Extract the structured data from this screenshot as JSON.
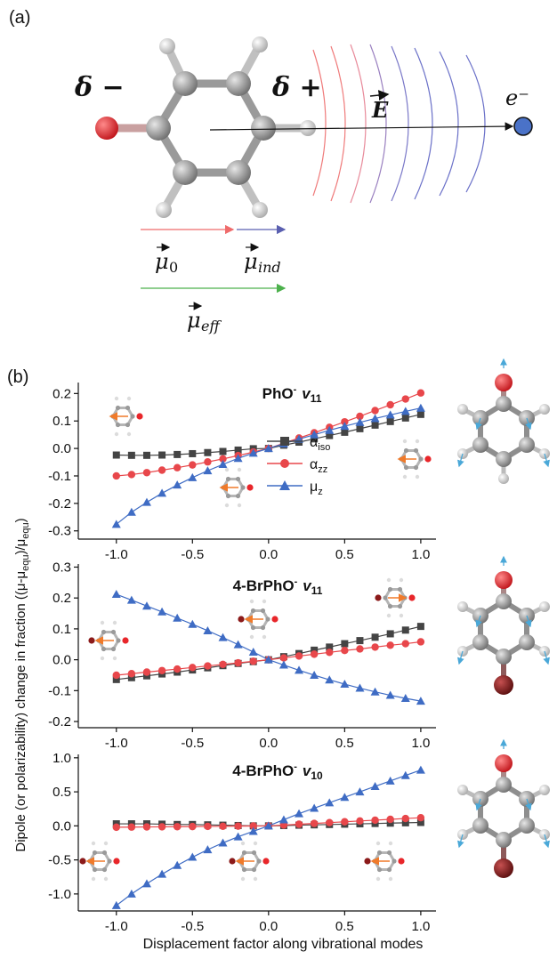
{
  "panel_a": {
    "label": "(a)",
    "delta_minus": "δ −",
    "delta_plus": "δ +",
    "field_label": "E",
    "electron_label": "e⁻",
    "mu0_label": "μ",
    "mu0_sub": "0",
    "muind_label": "μ",
    "muind_sub": "ind",
    "mueff_label": "μ",
    "mueff_sub": "eff",
    "colors": {
      "oxygen": "#e8262a",
      "carbon": "#8e8e8e",
      "hydrogen": "#d8d8d8",
      "electron": "#4a72c8",
      "mu0": "#ef6b6b",
      "muind": "#5a5fb0",
      "mueff": "#4cb14c"
    }
  },
  "panel_b": {
    "label": "(b)",
    "ylabel": "Dipole (or polarizability) change in fraction ((μ-μ",
    "ylabel_sub1": "equ",
    "ylabel_mid": ")/μ",
    "ylabel_sub2": "equ",
    "ylabel_end": ")",
    "xlabel": "Displacement factor along vibrational modes",
    "legend": [
      {
        "base": "α",
        "sub": "iso"
      },
      {
        "base": "α",
        "sub": "zz"
      },
      {
        "base": "μ",
        "sub": "z"
      }
    ],
    "colors": {
      "alpha_iso": "#444444",
      "alpha_zz": "#e8474b",
      "mu_z": "#3f6cc4",
      "arrow": "#f07a2a",
      "bromine": "#8b1a1a",
      "mode_arrow": "#4aa8d8"
    }
  },
  "chart_data": [
    {
      "type": "line",
      "title": "PhO⁻ ν11",
      "title_main": "PhO",
      "title_sup": "-",
      "title_nu": "v",
      "title_sub": "11",
      "xlim": [
        -1.25,
        1.1
      ],
      "ylim": [
        -0.33,
        0.24
      ],
      "xticks": [
        -1.0,
        -0.5,
        0.0,
        0.5,
        1.0
      ],
      "xtick_labels": [
        "-1.0",
        "-0.5",
        "0.0",
        "0.5",
        "1.0"
      ],
      "yticks": [
        0.2,
        0.1,
        0.0,
        -0.1,
        -0.2,
        -0.3
      ],
      "ytick_labels": [
        "0.2",
        "0.1",
        "0.0",
        "-0.1",
        "-0.2",
        "-0.3"
      ],
      "series": [
        {
          "name": "α_iso",
          "marker": "square",
          "x": [
            -1.0,
            -0.9,
            -0.8,
            -0.7,
            -0.6,
            -0.5,
            -0.4,
            -0.3,
            -0.2,
            -0.1,
            0.0,
            0.1,
            0.2,
            0.3,
            0.4,
            0.5,
            0.6,
            0.7,
            0.8,
            0.9,
            1.0
          ],
          "y": [
            -0.024,
            -0.025,
            -0.025,
            -0.024,
            -0.022,
            -0.019,
            -0.015,
            -0.011,
            -0.006,
            -0.001,
            0.0,
            0.012,
            0.023,
            0.035,
            0.047,
            0.059,
            0.072,
            0.085,
            0.098,
            0.111,
            0.124
          ]
        },
        {
          "name": "α_zz",
          "marker": "circle",
          "x": [
            -1.0,
            -0.9,
            -0.8,
            -0.7,
            -0.6,
            -0.5,
            -0.4,
            -0.3,
            -0.2,
            -0.1,
            0.0,
            0.1,
            0.2,
            0.3,
            0.4,
            0.5,
            0.6,
            0.7,
            0.8,
            0.9,
            1.0
          ],
          "y": [
            -0.1,
            -0.095,
            -0.088,
            -0.079,
            -0.07,
            -0.06,
            -0.049,
            -0.038,
            -0.026,
            -0.013,
            0.0,
            0.019,
            0.038,
            0.057,
            0.077,
            0.097,
            0.117,
            0.138,
            0.159,
            0.18,
            0.202
          ]
        },
        {
          "name": "μ_z",
          "marker": "triangle",
          "x": [
            -1.0,
            -0.9,
            -0.8,
            -0.7,
            -0.6,
            -0.5,
            -0.4,
            -0.3,
            -0.2,
            -0.1,
            0.0,
            0.1,
            0.2,
            0.3,
            0.4,
            0.5,
            0.6,
            0.7,
            0.8,
            0.9,
            1.0
          ],
          "y": [
            -0.276,
            -0.232,
            -0.196,
            -0.163,
            -0.133,
            -0.106,
            -0.081,
            -0.058,
            -0.036,
            -0.017,
            0.0,
            0.017,
            0.034,
            0.05,
            0.066,
            0.081,
            0.095,
            0.109,
            0.122,
            0.135,
            0.147
          ]
        }
      ]
    },
    {
      "type": "line",
      "title": "4-BrPhO⁻ ν11",
      "title_main": "4-BrPhO",
      "title_sup": "-",
      "title_nu": "v",
      "title_sub": "11",
      "xlim": [
        -1.25,
        1.1
      ],
      "ylim": [
        -0.22,
        0.31
      ],
      "xticks": [
        -1.0,
        -0.5,
        0.0,
        0.5,
        1.0
      ],
      "xtick_labels": [
        "-1.0",
        "-0.5",
        "0.0",
        "0.5",
        "1.0"
      ],
      "yticks": [
        0.3,
        0.2,
        0.1,
        0.0,
        -0.1,
        -0.2
      ],
      "ytick_labels": [
        "0.3",
        "0.2",
        "0.1",
        "0.0",
        "-0.1",
        "-0.2"
      ],
      "series": [
        {
          "name": "α_iso",
          "marker": "square",
          "x": [
            -1.0,
            -0.9,
            -0.8,
            -0.7,
            -0.6,
            -0.5,
            -0.4,
            -0.3,
            -0.2,
            -0.1,
            0.0,
            0.1,
            0.2,
            0.3,
            0.4,
            0.5,
            0.6,
            0.7,
            0.8,
            0.9,
            1.0
          ],
          "y": [
            -0.064,
            -0.058,
            -0.052,
            -0.046,
            -0.04,
            -0.033,
            -0.026,
            -0.019,
            -0.012,
            -0.006,
            0.0,
            0.01,
            0.02,
            0.031,
            0.041,
            0.052,
            0.062,
            0.073,
            0.084,
            0.096,
            0.108
          ]
        },
        {
          "name": "α_zz",
          "marker": "circle",
          "x": [
            -1.0,
            -0.9,
            -0.8,
            -0.7,
            -0.6,
            -0.5,
            -0.4,
            -0.3,
            -0.2,
            -0.1,
            0.0,
            0.1,
            0.2,
            0.3,
            0.4,
            0.5,
            0.6,
            0.7,
            0.8,
            0.9,
            1.0
          ],
          "y": [
            -0.05,
            -0.045,
            -0.04,
            -0.035,
            -0.03,
            -0.025,
            -0.02,
            -0.015,
            -0.01,
            -0.005,
            0.0,
            0.006,
            0.012,
            0.018,
            0.024,
            0.03,
            0.035,
            0.041,
            0.047,
            0.052,
            0.058
          ]
        },
        {
          "name": "μ_z",
          "marker": "triangle",
          "x": [
            -1.0,
            -0.9,
            -0.8,
            -0.7,
            -0.6,
            -0.5,
            -0.4,
            -0.3,
            -0.2,
            -0.1,
            0.0,
            0.1,
            0.2,
            0.3,
            0.4,
            0.5,
            0.6,
            0.7,
            0.8,
            0.9,
            1.0
          ],
          "y": [
            0.212,
            0.193,
            0.174,
            0.155,
            0.135,
            0.115,
            0.094,
            0.072,
            0.049,
            0.025,
            0.0,
            -0.017,
            -0.034,
            -0.05,
            -0.065,
            -0.079,
            -0.092,
            -0.104,
            -0.115,
            -0.125,
            -0.134
          ]
        }
      ]
    },
    {
      "type": "line",
      "title": "4-BrPhO⁻ ν10",
      "title_main": "4-BrPhO",
      "title_sup": "-",
      "title_nu": "v",
      "title_sub": "10",
      "xlim": [
        -1.25,
        1.1
      ],
      "ylim": [
        -1.25,
        1.05
      ],
      "xticks": [
        -1.0,
        -0.5,
        0.0,
        0.5,
        1.0
      ],
      "xtick_labels": [
        "-1.0",
        "-0.5",
        "0.0",
        "0.5",
        "1.0"
      ],
      "yticks": [
        1.0,
        0.5,
        0.0,
        -0.5,
        -1.0
      ],
      "ytick_labels": [
        "1.0",
        "0.5",
        "0.0",
        "-0.5",
        "-1.0"
      ],
      "series": [
        {
          "name": "α_iso",
          "marker": "square",
          "x": [
            -1.0,
            -0.9,
            -0.8,
            -0.7,
            -0.6,
            -0.5,
            -0.4,
            -0.3,
            -0.2,
            -0.1,
            0.0,
            0.1,
            0.2,
            0.3,
            0.4,
            0.5,
            0.6,
            0.7,
            0.8,
            0.9,
            1.0
          ],
          "y": [
            0.03,
            0.03,
            0.03,
            0.025,
            0.02,
            0.02,
            0.015,
            0.01,
            0.005,
            0.0,
            0.0,
            0.005,
            0.01,
            0.015,
            0.02,
            0.025,
            0.03,
            0.035,
            0.04,
            0.045,
            0.05
          ]
        },
        {
          "name": "α_zz",
          "marker": "circle",
          "x": [
            -1.0,
            -0.9,
            -0.8,
            -0.7,
            -0.6,
            -0.5,
            -0.4,
            -0.3,
            -0.2,
            -0.1,
            0.0,
            0.1,
            0.2,
            0.3,
            0.4,
            0.5,
            0.6,
            0.7,
            0.8,
            0.9,
            1.0
          ],
          "y": [
            -0.02,
            -0.018,
            -0.016,
            -0.014,
            -0.012,
            -0.01,
            -0.008,
            -0.006,
            -0.004,
            -0.002,
            0.0,
            0.012,
            0.024,
            0.036,
            0.048,
            0.06,
            0.072,
            0.084,
            0.096,
            0.108,
            0.12
          ]
        },
        {
          "name": "μ_z",
          "marker": "triangle",
          "x": [
            -1.0,
            -0.9,
            -0.8,
            -0.7,
            -0.6,
            -0.5,
            -0.4,
            -0.3,
            -0.2,
            -0.1,
            0.0,
            0.1,
            0.2,
            0.3,
            0.4,
            0.5,
            0.6,
            0.7,
            0.8,
            0.9,
            1.0
          ],
          "y": [
            -1.17,
            -1.0,
            -0.85,
            -0.71,
            -0.58,
            -0.46,
            -0.35,
            -0.25,
            -0.16,
            -0.08,
            0.0,
            0.09,
            0.18,
            0.26,
            0.34,
            0.42,
            0.5,
            0.58,
            0.66,
            0.74,
            0.82
          ]
        }
      ]
    }
  ]
}
